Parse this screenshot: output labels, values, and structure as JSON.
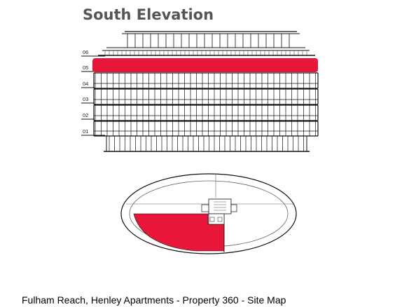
{
  "title": "South Elevation",
  "floors": [
    "06",
    "05",
    "04",
    "03",
    "02",
    "01"
  ],
  "highlighted_floor": "05",
  "footer": "Fulham Reach, Henley Apartments - Property 360 - Site Map",
  "colors": {
    "highlight": "#e8173a",
    "line": "#111111",
    "title": "#555555"
  }
}
